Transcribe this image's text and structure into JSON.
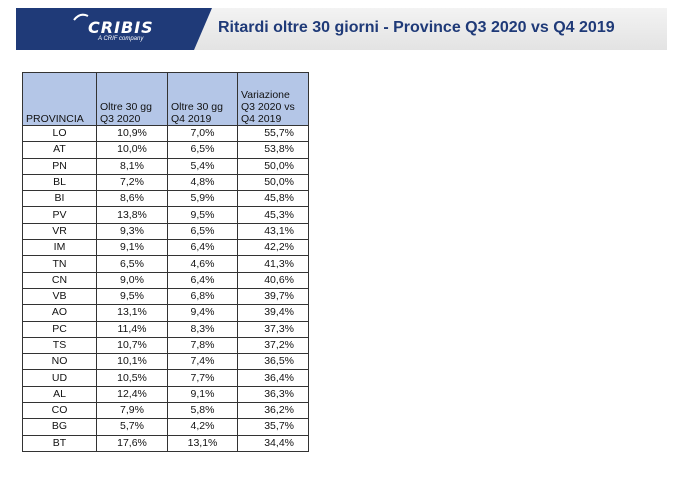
{
  "header": {
    "logo_name": "CRIBIS",
    "logo_tagline": "A CRIF company",
    "title": "Ritardi oltre 30 giorni - Province Q3 2020 vs Q4 2019"
  },
  "colors": {
    "brand": "#1f3a78",
    "header_fill": "#b4c6e7"
  },
  "table": {
    "headers": [
      "PROVINCIA",
      "Oltre 30 gg Q3 2020",
      "Oltre 30 gg Q4 2019",
      "Variazione Q3 2020 vs Q4 2019"
    ],
    "rows": [
      [
        "LO",
        "10,9%",
        "7,0%",
        "55,7%"
      ],
      [
        "AT",
        "10,0%",
        "6,5%",
        "53,8%"
      ],
      [
        "PN",
        "8,1%",
        "5,4%",
        "50,0%"
      ],
      [
        "BL",
        "7,2%",
        "4,8%",
        "50,0%"
      ],
      [
        "BI",
        "8,6%",
        "5,9%",
        "45,8%"
      ],
      [
        "PV",
        "13,8%",
        "9,5%",
        "45,3%"
      ],
      [
        "VR",
        "9,3%",
        "6,5%",
        "43,1%"
      ],
      [
        "IM",
        "9,1%",
        "6,4%",
        "42,2%"
      ],
      [
        "TN",
        "6,5%",
        "4,6%",
        "41,3%"
      ],
      [
        "CN",
        "9,0%",
        "6,4%",
        "40,6%"
      ],
      [
        "VB",
        "9,5%",
        "6,8%",
        "39,7%"
      ],
      [
        "AO",
        "13,1%",
        "9,4%",
        "39,4%"
      ],
      [
        "PC",
        "11,4%",
        "8,3%",
        "37,3%"
      ],
      [
        "TS",
        "10,7%",
        "7,8%",
        "37,2%"
      ],
      [
        "NO",
        "10,1%",
        "7,4%",
        "36,5%"
      ],
      [
        "UD",
        "10,5%",
        "7,7%",
        "36,4%"
      ],
      [
        "AL",
        "12,4%",
        "9,1%",
        "36,3%"
      ],
      [
        "CO",
        "7,9%",
        "5,8%",
        "36,2%"
      ],
      [
        "BG",
        "5,7%",
        "4,2%",
        "35,7%"
      ],
      [
        "BT",
        "17,6%",
        "13,1%",
        "34,4%"
      ]
    ]
  }
}
